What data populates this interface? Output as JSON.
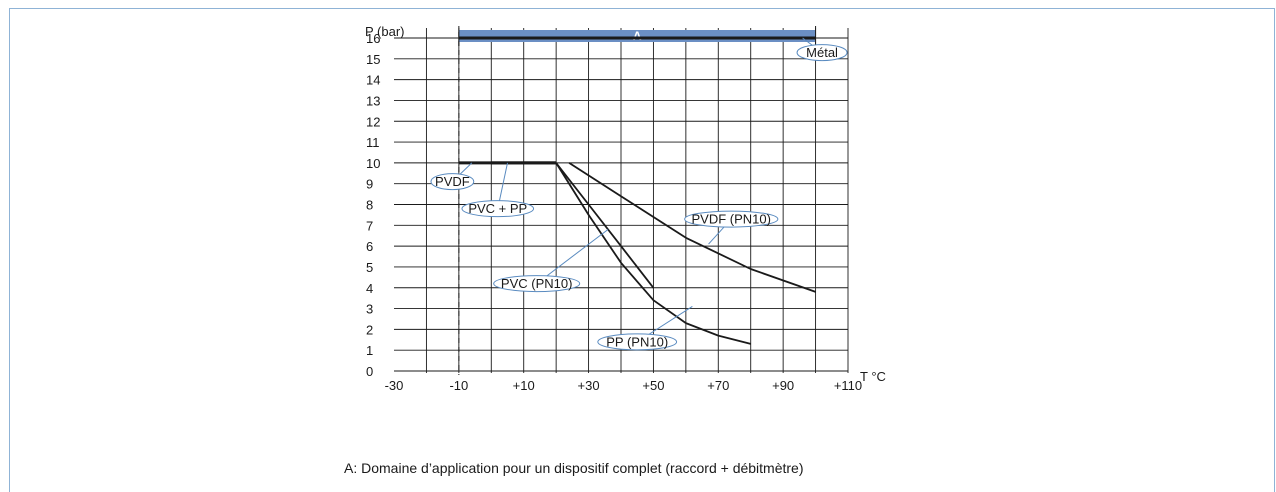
{
  "chart_data": {
    "type": "line",
    "ylabel": "P (bar)",
    "xlabel": "T °C",
    "x_ticks": [
      "-30",
      "-10",
      "+10",
      "+30",
      "+50",
      "+70",
      "+90",
      "+110"
    ],
    "y_ticks": [
      "0",
      "1",
      "2",
      "3",
      "4",
      "5",
      "6",
      "7",
      "8",
      "9",
      "10",
      "11",
      "12",
      "13",
      "14",
      "15",
      "16"
    ],
    "xlim": [
      -30,
      110
    ],
    "ylim": [
      0,
      16
    ],
    "grid": true,
    "domain_band": {
      "label": "A",
      "x_from": -10,
      "x_to": 100,
      "color": "#6b8fc4"
    },
    "reference_line_x": -10,
    "series": [
      {
        "name": "Métal",
        "color": "#1a1a1a",
        "points": [
          [
            -10,
            16
          ],
          [
            100,
            16
          ]
        ]
      },
      {
        "name": "PVDF",
        "color": "#1a1a1a",
        "points": [
          [
            -10,
            10
          ],
          [
            20,
            10
          ]
        ]
      },
      {
        "name": "PVC + PP",
        "color": "#1a1a1a",
        "points": [
          [
            0,
            10
          ],
          [
            20,
            10
          ]
        ]
      },
      {
        "name": "PVDF (PN10)",
        "color": "#1a1a1a",
        "points": [
          [
            24,
            10
          ],
          [
            40,
            8.4
          ],
          [
            60,
            6.4
          ],
          [
            80,
            4.9
          ],
          [
            100,
            3.8
          ]
        ]
      },
      {
        "name": "PVC (PN10)",
        "color": "#1a1a1a",
        "points": [
          [
            20,
            10
          ],
          [
            30,
            8
          ],
          [
            40,
            6
          ],
          [
            50,
            4
          ]
        ]
      },
      {
        "name": "PP (PN10)",
        "color": "#1a1a1a",
        "points": [
          [
            20,
            10
          ],
          [
            30,
            7.5
          ],
          [
            40,
            5.2
          ],
          [
            50,
            3.4
          ],
          [
            60,
            2.3
          ],
          [
            70,
            1.7
          ],
          [
            80,
            1.3
          ]
        ]
      }
    ],
    "callouts": [
      {
        "text": "Métal",
        "anchor": [
          96,
          16
        ],
        "at": [
          102,
          15.3
        ]
      },
      {
        "text": "PVDF",
        "anchor": [
          -6,
          10
        ],
        "at": [
          -12,
          9.1
        ]
      },
      {
        "text": "PVC + PP",
        "anchor": [
          5,
          10
        ],
        "at": [
          2,
          7.8
        ]
      },
      {
        "text": "PVDF (PN10)",
        "anchor": [
          67,
          6.1
        ],
        "at": [
          74,
          7.3
        ]
      },
      {
        "text": "PVC (PN10)",
        "anchor": [
          36,
          6.8
        ],
        "at": [
          14,
          4.2
        ]
      },
      {
        "text": "PP (PN10)",
        "anchor": [
          62,
          3.1
        ],
        "at": [
          45,
          1.4
        ]
      }
    ]
  },
  "caption": "A: Domaine d’application pour un dispositif complet (raccord + débitmètre)"
}
